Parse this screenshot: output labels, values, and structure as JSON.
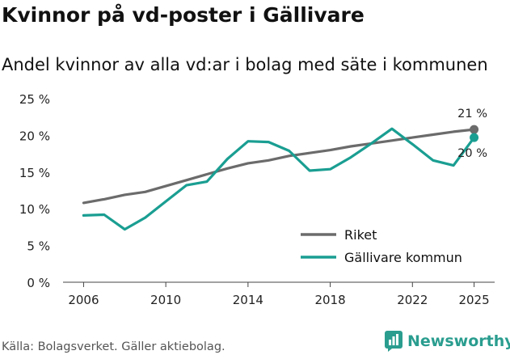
{
  "header": {
    "title": "Kvinnor på vd-poster i Gällivare",
    "subtitle": "Andel kvinnor av alla vd:ar i bolag med säte i kommunen"
  },
  "footer": {
    "source": "Källa: Bolagsverket. Gäller aktiebolag.",
    "brand": "Newsworthy"
  },
  "chart_data": {
    "type": "line",
    "title": "Kvinnor på vd-poster i Gällivare",
    "subtitle": "Andel kvinnor av alla vd:ar i bolag med säte i kommunen",
    "xlabel": "",
    "ylabel": "",
    "xlim": [
      2005,
      2026
    ],
    "ylim": [
      0,
      25
    ],
    "x_ticks": [
      2006,
      2010,
      2014,
      2018,
      2022,
      2025
    ],
    "y_ticks": [
      0,
      5,
      10,
      15,
      20,
      25
    ],
    "y_tick_labels": [
      "0 %",
      "5 %",
      "10 %",
      "15 %",
      "20 %",
      "25 %"
    ],
    "grid": false,
    "legend_position": "bottom-right",
    "x": [
      2006,
      2007,
      2008,
      2009,
      2010,
      2011,
      2012,
      2013,
      2014,
      2015,
      2016,
      2017,
      2018,
      2019,
      2020,
      2021,
      2022,
      2023,
      2024,
      2025
    ],
    "series": [
      {
        "name": "Riket",
        "color": "#6b6b6b",
        "values": [
          10.8,
          11.3,
          11.9,
          12.3,
          13.1,
          13.9,
          14.7,
          15.5,
          16.2,
          16.6,
          17.2,
          17.6,
          18.0,
          18.5,
          18.9,
          19.3,
          19.7,
          20.1,
          20.5,
          20.8
        ],
        "end_label": "21 %"
      },
      {
        "name": "Gällivare kommun",
        "color": "#1a9e92",
        "values": [
          9.1,
          9.2,
          7.2,
          8.8,
          11.0,
          13.2,
          13.7,
          16.8,
          19.2,
          19.1,
          17.9,
          15.2,
          15.4,
          17.0,
          18.9,
          20.9,
          18.8,
          16.6,
          15.9,
          19.7
        ],
        "end_label": "20 %"
      }
    ]
  }
}
